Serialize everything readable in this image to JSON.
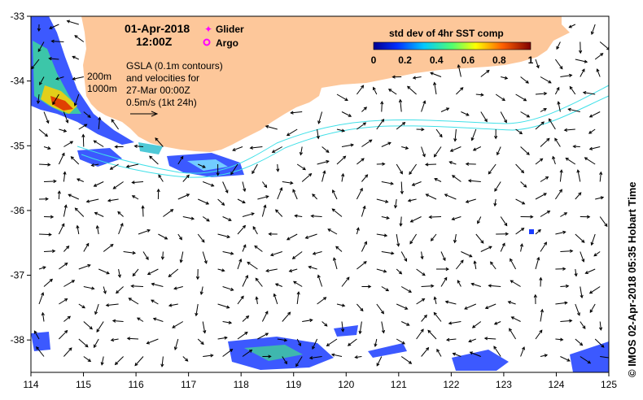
{
  "header": {
    "date": "01-Apr-2018",
    "time": "12:00Z"
  },
  "legend": {
    "glider_label": "Glider",
    "argo_label": "Argo",
    "glider_color": "#ff00ff",
    "argo_color": "#ff00ff"
  },
  "colorbar": {
    "title": "std dev of 4hr SST comp",
    "ticks": [
      "0",
      "0.2",
      "0.4",
      "0.6",
      "0.8",
      "1"
    ]
  },
  "annotations": {
    "gsla_line1": "GSLA (0.1m contours)",
    "gsla_line2": "and velocities for",
    "gsla_line3": "27-Mar 00:00Z",
    "gsla_line4": "0.5m/s (1kt 24h)",
    "depth_200": "200m",
    "depth_1000": "1000m"
  },
  "axes": {
    "x_ticks": [
      "114",
      "115",
      "116",
      "117",
      "118",
      "119",
      "120",
      "121",
      "122",
      "123",
      "124",
      "125"
    ],
    "y_ticks": [
      "-33",
      "-34",
      "-35",
      "-36",
      "-37",
      "-38"
    ],
    "x_range": [
      114,
      125
    ],
    "y_range": [
      -38.5,
      -33
    ]
  },
  "credit": "© IMOS 02-Apr-2018 05:35 Hobart Time",
  "colors": {
    "land": "#fdc79a",
    "bathymetry": "#40e0e8",
    "arrows": "#000000"
  }
}
